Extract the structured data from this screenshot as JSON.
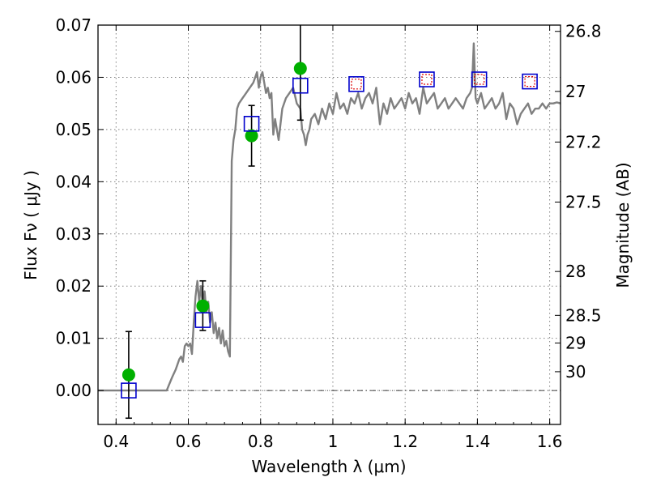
{
  "chart_data": {
    "type": "scatter",
    "xlabel": "Wavelength  λ (μm)",
    "ylabel": "Flux  Fν  ( μJy )",
    "ylabel_right": "Magnitude (AB)",
    "xlim": [
      0.35,
      1.63
    ],
    "ylim": [
      -0.0065,
      0.07
    ],
    "grid": true,
    "x_ticks": [
      {
        "value": 0.4,
        "label": "0.4"
      },
      {
        "value": 0.6,
        "label": "0.6"
      },
      {
        "value": 0.8,
        "label": "0.8"
      },
      {
        "value": 1.0,
        "label": "1"
      },
      {
        "value": 1.2,
        "label": "1.2"
      },
      {
        "value": 1.4,
        "label": "1.4"
      },
      {
        "value": 1.6,
        "label": "1.6"
      }
    ],
    "y_ticks": [
      {
        "value": 0.0,
        "label": "0.00"
      },
      {
        "value": 0.01,
        "label": "0.01"
      },
      {
        "value": 0.02,
        "label": "0.02"
      },
      {
        "value": 0.03,
        "label": "0.03"
      },
      {
        "value": 0.04,
        "label": "0.04"
      },
      {
        "value": 0.05,
        "label": "0.05"
      },
      {
        "value": 0.06,
        "label": "0.06"
      },
      {
        "value": 0.07,
        "label": "0.07"
      }
    ],
    "right_ticks": [
      {
        "label": "26.8",
        "flux": 0.0688
      },
      {
        "label": "27",
        "flux": 0.0573
      },
      {
        "label": "27.2",
        "flux": 0.0476
      },
      {
        "label": "27.5",
        "flux": 0.0361
      },
      {
        "label": "28",
        "flux": 0.0228
      },
      {
        "label": "28.5",
        "flux": 0.0144
      },
      {
        "label": "29",
        "flux": 0.0091
      },
      {
        "label": "30",
        "flux": 0.0036
      }
    ],
    "spectrum": {
      "color": "#808080",
      "x": [
        0.35,
        0.54,
        0.555,
        0.565,
        0.575,
        0.58,
        0.585,
        0.59,
        0.595,
        0.6,
        0.605,
        0.61,
        0.615,
        0.62,
        0.625,
        0.63,
        0.635,
        0.64,
        0.645,
        0.65,
        0.655,
        0.66,
        0.665,
        0.67,
        0.675,
        0.68,
        0.685,
        0.69,
        0.695,
        0.7,
        0.705,
        0.71,
        0.715,
        0.72,
        0.725,
        0.73,
        0.735,
        0.74,
        0.75,
        0.76,
        0.77,
        0.78,
        0.785,
        0.79,
        0.795,
        0.8,
        0.805,
        0.81,
        0.815,
        0.82,
        0.825,
        0.83,
        0.835,
        0.84,
        0.85,
        0.86,
        0.87,
        0.88,
        0.89,
        0.9,
        0.91,
        0.915,
        0.92,
        0.925,
        0.93,
        0.935,
        0.94,
        0.95,
        0.96,
        0.97,
        0.98,
        0.99,
        1.0,
        1.01,
        1.02,
        1.03,
        1.04,
        1.05,
        1.06,
        1.07,
        1.08,
        1.09,
        1.1,
        1.11,
        1.12,
        1.13,
        1.14,
        1.15,
        1.16,
        1.17,
        1.18,
        1.19,
        1.2,
        1.21,
        1.22,
        1.23,
        1.24,
        1.25,
        1.26,
        1.27,
        1.28,
        1.29,
        1.3,
        1.31,
        1.32,
        1.33,
        1.34,
        1.35,
        1.36,
        1.37,
        1.38,
        1.385,
        1.39,
        1.395,
        1.4,
        1.41,
        1.42,
        1.43,
        1.44,
        1.45,
        1.46,
        1.47,
        1.48,
        1.49,
        1.5,
        1.51,
        1.52,
        1.53,
        1.54,
        1.55,
        1.56,
        1.57,
        1.58,
        1.59,
        1.6,
        1.61,
        1.62,
        1.63
      ],
      "y": [
        0.0,
        0.0,
        0.0025,
        0.004,
        0.006,
        0.0065,
        0.0055,
        0.0085,
        0.009,
        0.0085,
        0.009,
        0.007,
        0.013,
        0.018,
        0.021,
        0.017,
        0.02,
        0.016,
        0.019,
        0.015,
        0.017,
        0.013,
        0.015,
        0.011,
        0.013,
        0.01,
        0.012,
        0.009,
        0.0115,
        0.0085,
        0.0095,
        0.0075,
        0.0065,
        0.044,
        0.048,
        0.05,
        0.054,
        0.055,
        0.056,
        0.057,
        0.058,
        0.059,
        0.06,
        0.061,
        0.058,
        0.06,
        0.061,
        0.059,
        0.057,
        0.058,
        0.056,
        0.057,
        0.049,
        0.052,
        0.048,
        0.054,
        0.056,
        0.057,
        0.058,
        0.055,
        0.054,
        0.05,
        0.049,
        0.047,
        0.049,
        0.05,
        0.052,
        0.053,
        0.051,
        0.054,
        0.052,
        0.055,
        0.053,
        0.057,
        0.054,
        0.055,
        0.053,
        0.056,
        0.055,
        0.057,
        0.054,
        0.056,
        0.057,
        0.055,
        0.058,
        0.051,
        0.055,
        0.053,
        0.056,
        0.054,
        0.055,
        0.056,
        0.054,
        0.057,
        0.055,
        0.056,
        0.053,
        0.058,
        0.055,
        0.056,
        0.057,
        0.054,
        0.055,
        0.056,
        0.054,
        0.055,
        0.056,
        0.055,
        0.054,
        0.056,
        0.057,
        0.058,
        0.0665,
        0.056,
        0.055,
        0.057,
        0.054,
        0.055,
        0.056,
        0.054,
        0.055,
        0.057,
        0.052,
        0.055,
        0.054,
        0.051,
        0.053,
        0.054,
        0.055,
        0.053,
        0.054,
        0.054,
        0.055,
        0.054,
        0.055,
        0.055,
        0.0552,
        0.055
      ]
    },
    "series": [
      {
        "name": "",
        "marker": "circle",
        "color": "#00b000",
        "x": [
          0.435,
          0.64,
          0.775,
          0.91
        ],
        "y": [
          0.003,
          0.0162,
          0.0488,
          0.0617
        ],
        "yerr_low": [
          0.0083,
          0.0047,
          0.0058,
          0.0099
        ],
        "yerr_high": [
          0.0083,
          0.0048,
          0.0058,
          0.012
        ]
      },
      {
        "name": "",
        "marker": "square-open",
        "color": "#0000cc",
        "x": [
          0.435,
          0.64,
          0.775,
          0.91,
          1.065,
          1.26,
          1.405,
          1.545
        ],
        "y": [
          0.0,
          0.0135,
          0.0511,
          0.0584,
          0.0587,
          0.0596,
          0.0596,
          0.0592
        ]
      },
      {
        "name": "",
        "marker": "square-dotted",
        "color": "#dd0000",
        "x": [
          1.065,
          1.26,
          1.405,
          1.545
        ],
        "y": [
          0.0587,
          0.0596,
          0.0596,
          0.0592
        ]
      }
    ]
  }
}
